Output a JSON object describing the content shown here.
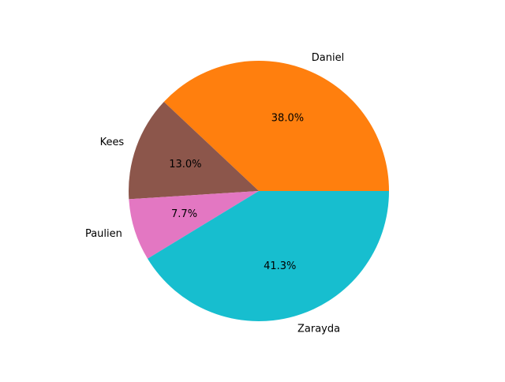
{
  "chart_data": {
    "type": "pie",
    "title": "",
    "slices": [
      {
        "label": "Daniel",
        "value": 38.0,
        "pct_label": "38.0%",
        "color": "#ff7f0e"
      },
      {
        "label": "Kees",
        "value": 13.0,
        "pct_label": "13.0%",
        "color": "#8c564b"
      },
      {
        "label": "Paulien",
        "value": 7.7,
        "pct_label": "7.7%",
        "color": "#e377c2"
      },
      {
        "label": "Zarayda",
        "value": 41.3,
        "pct_label": "41.3%",
        "color": "#17becf"
      }
    ],
    "start_angle_deg": 0,
    "direction": "counterclockwise",
    "legend": "none"
  }
}
